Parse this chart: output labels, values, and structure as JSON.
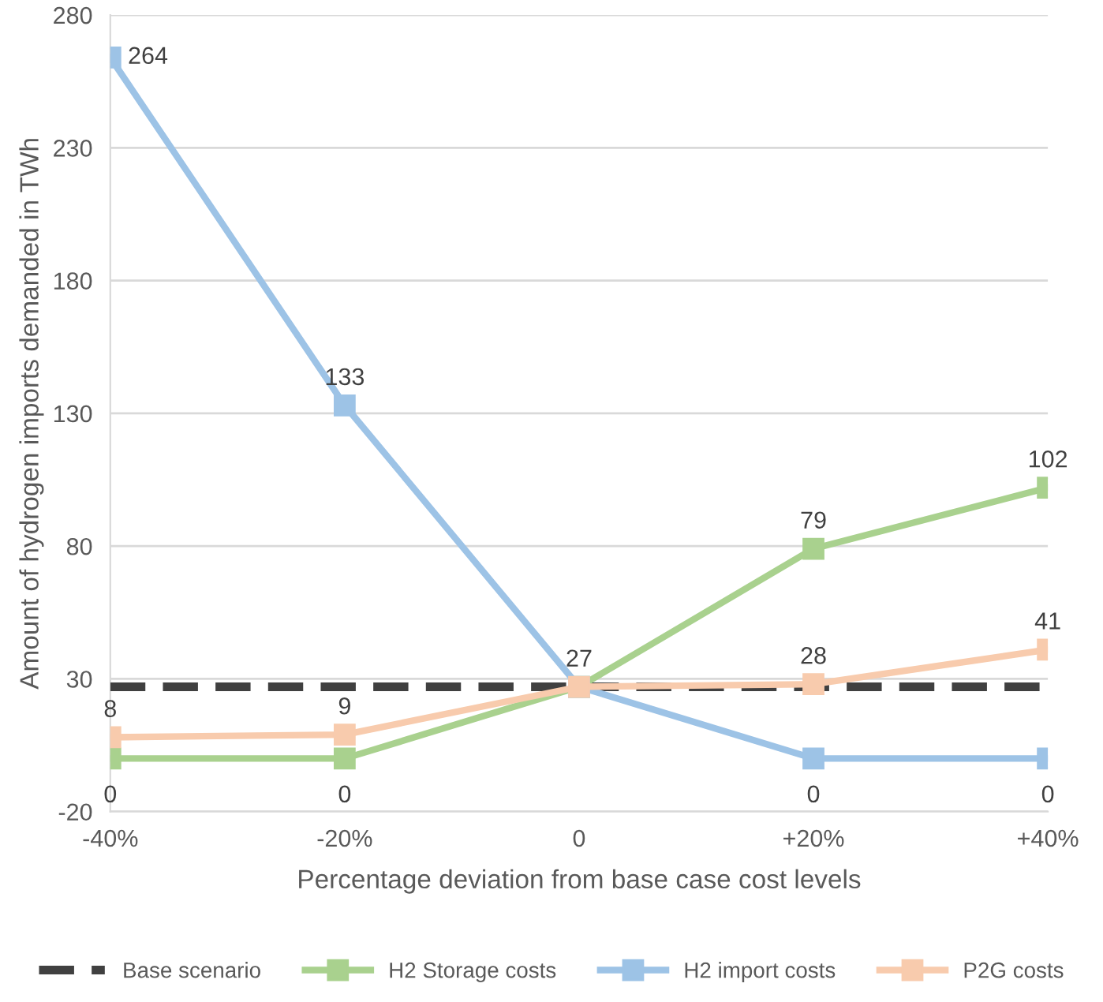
{
  "chart_data": {
    "type": "line",
    "xlabel": "Percentage deviation from base case cost levels",
    "ylabel": "Amount of hydrogen imports demanded in TWh",
    "categories": [
      "-40%",
      "-20%",
      "0",
      "+20%",
      "+40%"
    ],
    "series": [
      {
        "name": "Base scenario",
        "color": "#404040",
        "values": [
          27,
          27,
          27,
          27,
          27
        ],
        "line_style": "dashed",
        "marker": "none"
      },
      {
        "name": "H2 Storage costs",
        "color": "#a9d18e",
        "values": [
          0,
          0,
          27,
          79,
          102
        ],
        "marker": "square",
        "value_labels": [
          "0",
          "0",
          null,
          "79",
          "102"
        ]
      },
      {
        "name": "H2 import costs",
        "color": "#9dc3e6",
        "values": [
          264,
          133,
          27,
          0,
          0
        ],
        "marker": "square",
        "value_labels": [
          "264",
          "133",
          null,
          "0",
          "0"
        ]
      },
      {
        "name": "P2G costs",
        "color": "#f8cbad",
        "values": [
          8,
          9,
          27,
          28,
          41
        ],
        "marker": "square",
        "value_labels": [
          "8",
          "9",
          "27",
          "28",
          "41"
        ]
      }
    ],
    "ylim": [
      -20,
      280
    ],
    "yticks": [
      -20,
      30,
      80,
      130,
      180,
      230,
      280
    ],
    "grid": "y",
    "legend": "bottom"
  }
}
